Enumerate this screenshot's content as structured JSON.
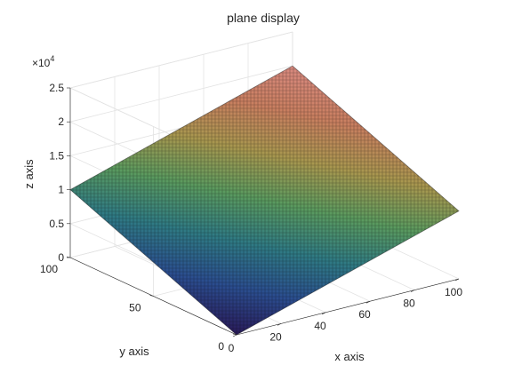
{
  "chart_data": {
    "type": "surface",
    "title": "plane display",
    "xlabel": "x axis",
    "ylabel": "y axis",
    "zlabel": "z axis",
    "xlim": [
      0,
      100
    ],
    "ylim": [
      0,
      100
    ],
    "zlim": [
      0,
      25000
    ],
    "x_ticks": [
      0,
      20,
      40,
      60,
      80,
      100
    ],
    "y_ticks": [
      0,
      50,
      100
    ],
    "z_ticks": [
      0,
      0.5,
      1,
      1.5,
      2,
      2.5
    ],
    "z_tick_labels": [
      "0",
      "0.5",
      "1",
      "1.5",
      "2",
      "2.5"
    ],
    "z_exponent_label": "×10",
    "z_exponent_power": "4",
    "surface": {
      "corners": [
        {
          "x": 0,
          "y": 0,
          "z": 0
        },
        {
          "x": 100,
          "y": 0,
          "z": 10000
        },
        {
          "x": 0,
          "y": 100,
          "z": 10000
        },
        {
          "x": 100,
          "y": 100,
          "z": 20000
        }
      ],
      "colormap": [
        "#2a1b5a",
        "#2b4d8f",
        "#2f7a84",
        "#5a9a5f",
        "#a8974f",
        "#c97f60",
        "#d98a80"
      ],
      "grid_on": true,
      "mesh_color": "#1a1a1a"
    }
  }
}
